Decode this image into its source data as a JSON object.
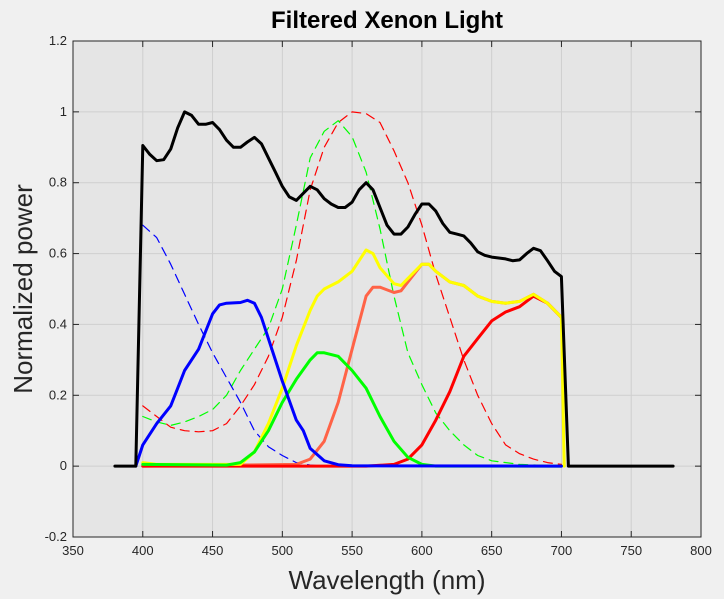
{
  "chart_data": {
    "type": "line",
    "title": "Filtered Xenon Light",
    "xlabel": "Wavelength (nm)",
    "ylabel": "Normalized power",
    "xlim": [
      350,
      800
    ],
    "ylim": [
      -0.2,
      1.2
    ],
    "xticks": [
      350,
      400,
      450,
      500,
      550,
      600,
      650,
      700,
      750,
      800
    ],
    "yticks": [
      -0.2,
      0,
      0.2,
      0.4,
      0.6,
      0.8,
      1,
      1.2
    ],
    "xtick_labels": [
      "350",
      "400",
      "450",
      "500",
      "550",
      "600",
      "650",
      "700",
      "750",
      "800"
    ],
    "ytick_labels": [
      "-0.2",
      "0",
      "0.2",
      "0.4",
      "0.6",
      "0.8",
      "1",
      "1.2"
    ],
    "grid": true,
    "background": "#e5e5e5",
    "series": [
      {
        "color": "#ff0000",
        "style": "dashed",
        "x": [
          400,
          410,
          420,
          430,
          440,
          450,
          460,
          470,
          480,
          490,
          500,
          510,
          520,
          530,
          540,
          550,
          560,
          570,
          580,
          590,
          600,
          610,
          620,
          630,
          640,
          650,
          660,
          670,
          680,
          690,
          700
        ],
        "y": [
          0.17,
          0.14,
          0.11,
          0.1,
          0.097,
          0.1,
          0.12,
          0.17,
          0.23,
          0.31,
          0.42,
          0.58,
          0.78,
          0.9,
          0.97,
          1.0,
          0.995,
          0.97,
          0.89,
          0.8,
          0.68,
          0.54,
          0.42,
          0.3,
          0.2,
          0.12,
          0.06,
          0.035,
          0.02,
          0.01,
          0.005
        ]
      },
      {
        "color": "#00ff00",
        "style": "dashed",
        "x": [
          400,
          410,
          420,
          430,
          440,
          450,
          460,
          470,
          480,
          490,
          500,
          510,
          520,
          530,
          540,
          550,
          560,
          570,
          580,
          590,
          600,
          610,
          620,
          630,
          640,
          650,
          670,
          700
        ],
        "y": [
          0.14,
          0.125,
          0.115,
          0.125,
          0.14,
          0.16,
          0.2,
          0.27,
          0.33,
          0.39,
          0.5,
          0.68,
          0.87,
          0.945,
          0.975,
          0.93,
          0.83,
          0.67,
          0.48,
          0.32,
          0.23,
          0.15,
          0.1,
          0.06,
          0.03,
          0.015,
          0.005,
          0
        ]
      },
      {
        "color": "#0000ff",
        "style": "dashed",
        "x": [
          400,
          410,
          420,
          430,
          440,
          450,
          460,
          470,
          480,
          490,
          500,
          510,
          520,
          530
        ],
        "y": [
          0.68,
          0.645,
          0.57,
          0.485,
          0.4,
          0.32,
          0.25,
          0.18,
          0.1,
          0.055,
          0.03,
          0.01,
          0.003,
          0
        ]
      },
      {
        "color": "#ff6347",
        "style": "solid",
        "x": [
          400,
          510,
          520,
          530,
          540,
          550,
          560,
          565,
          570,
          580,
          585,
          590,
          600,
          605,
          610,
          620,
          630,
          640,
          650,
          660,
          670,
          680,
          690,
          700
        ],
        "y": [
          0,
          0.005,
          0.02,
          0.07,
          0.18,
          0.33,
          0.48,
          0.505,
          0.505,
          0.49,
          0.495,
          0.52,
          0.57,
          0.57,
          0.55,
          0.52,
          0.51,
          0.48,
          0.465,
          0.46,
          0.465,
          0.485,
          0.46,
          0.42
        ]
      },
      {
        "color": "#ff0000",
        "style": "solid",
        "x": [
          400,
          560,
          580,
          590,
          600,
          610,
          620,
          630,
          640,
          650,
          660,
          670,
          680,
          690,
          700
        ],
        "y": [
          0,
          0,
          0.005,
          0.02,
          0.06,
          0.13,
          0.21,
          0.31,
          0.36,
          0.41,
          0.435,
          0.45,
          0.48,
          0.46,
          0.42
        ]
      },
      {
        "color": "#ffff00",
        "style": "solid",
        "x": [
          400,
          410,
          470,
          480,
          490,
          500,
          510,
          520,
          525,
          530,
          540,
          550,
          560,
          565,
          570,
          580,
          585,
          590,
          600,
          605,
          610,
          620,
          630,
          640,
          650,
          660,
          670,
          680,
          690,
          700,
          702
        ],
        "y": [
          0.01,
          0.005,
          0.005,
          0.04,
          0.12,
          0.22,
          0.34,
          0.44,
          0.48,
          0.5,
          0.52,
          0.55,
          0.61,
          0.6,
          0.56,
          0.515,
          0.51,
          0.53,
          0.57,
          0.57,
          0.55,
          0.52,
          0.51,
          0.48,
          0.465,
          0.46,
          0.465,
          0.485,
          0.46,
          0.42,
          0
        ]
      },
      {
        "color": "#00ff00",
        "style": "solid",
        "x": [
          400,
          460,
          470,
          480,
          490,
          500,
          510,
          520,
          525,
          530,
          540,
          550,
          560,
          570,
          580,
          590,
          600,
          610,
          700
        ],
        "y": [
          0.005,
          0.003,
          0.01,
          0.04,
          0.1,
          0.18,
          0.245,
          0.3,
          0.32,
          0.32,
          0.31,
          0.27,
          0.22,
          0.14,
          0.07,
          0.025,
          0.005,
          0,
          0
        ]
      },
      {
        "color": "#0000ff",
        "style": "solid",
        "x": [
          395,
          400,
          410,
          420,
          425,
          430,
          440,
          445,
          450,
          455,
          460,
          470,
          475,
          480,
          485,
          490,
          500,
          510,
          515,
          520,
          530,
          540,
          550,
          700
        ],
        "y": [
          0,
          0.06,
          0.12,
          0.17,
          0.22,
          0.27,
          0.33,
          0.38,
          0.43,
          0.455,
          0.46,
          0.462,
          0.468,
          0.46,
          0.42,
          0.36,
          0.24,
          0.13,
          0.1,
          0.05,
          0.015,
          0.004,
          0.001,
          0
        ]
      },
      {
        "color": "#000000",
        "style": "solid",
        "x": [
          380,
          395,
          400,
          405,
          410,
          415,
          420,
          425,
          430,
          435,
          440,
          445,
          450,
          455,
          460,
          465,
          470,
          475,
          480,
          485,
          490,
          495,
          500,
          505,
          510,
          515,
          520,
          525,
          530,
          535,
          540,
          545,
          550,
          555,
          560,
          565,
          570,
          575,
          580,
          585,
          590,
          595,
          600,
          605,
          610,
          615,
          620,
          625,
          630,
          635,
          640,
          645,
          650,
          660,
          665,
          670,
          675,
          680,
          685,
          690,
          695,
          700,
          705,
          780
        ],
        "y": [
          0,
          0,
          0.905,
          0.88,
          0.862,
          0.865,
          0.895,
          0.955,
          1.0,
          0.99,
          0.965,
          0.965,
          0.97,
          0.95,
          0.92,
          0.9,
          0.9,
          0.915,
          0.928,
          0.91,
          0.87,
          0.83,
          0.79,
          0.76,
          0.75,
          0.77,
          0.79,
          0.78,
          0.755,
          0.74,
          0.73,
          0.73,
          0.745,
          0.78,
          0.8,
          0.78,
          0.73,
          0.68,
          0.655,
          0.655,
          0.675,
          0.71,
          0.74,
          0.74,
          0.72,
          0.685,
          0.66,
          0.655,
          0.65,
          0.63,
          0.605,
          0.595,
          0.59,
          0.585,
          0.58,
          0.582,
          0.6,
          0.615,
          0.608,
          0.58,
          0.55,
          0.535,
          0,
          0
        ]
      }
    ]
  }
}
